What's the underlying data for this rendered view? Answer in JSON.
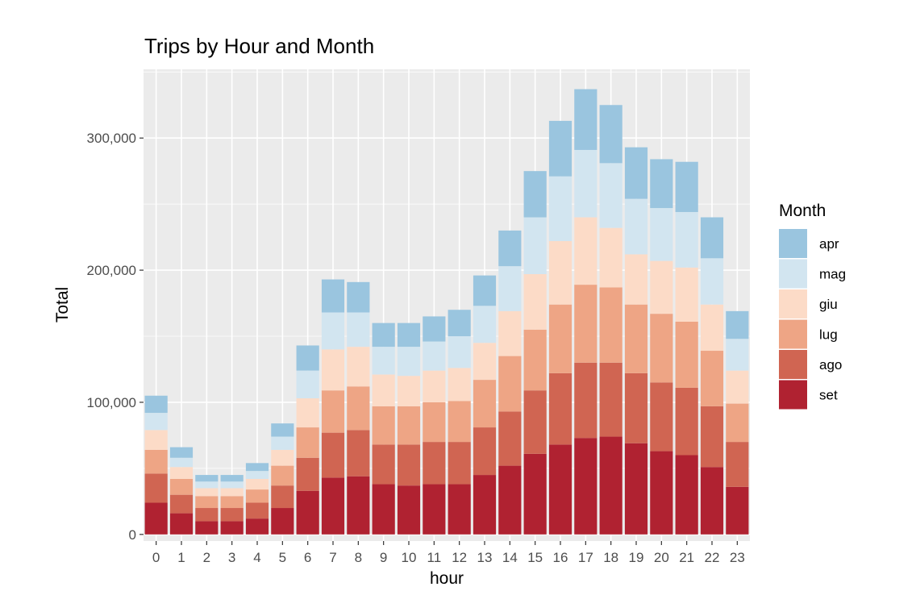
{
  "chart_data": {
    "type": "bar",
    "stacked": true,
    "title": "Trips by Hour and Month",
    "xlabel": "hour",
    "ylabel": "Total",
    "categories": [
      "0",
      "1",
      "2",
      "3",
      "4",
      "5",
      "6",
      "7",
      "8",
      "9",
      "10",
      "11",
      "12",
      "13",
      "14",
      "15",
      "16",
      "17",
      "18",
      "19",
      "20",
      "21",
      "22",
      "23"
    ],
    "y_ticks": [
      0,
      100000,
      200000,
      300000
    ],
    "y_tick_labels": [
      "0",
      "100,000",
      "200,000",
      "300,000"
    ],
    "ylim": [
      -5000,
      352000
    ],
    "grid": true,
    "legend": {
      "title": "Month",
      "position": "right"
    },
    "series": [
      {
        "name": "apr",
        "color": "#9ac5df",
        "values": [
          13000,
          8000,
          5000,
          5000,
          6000,
          10000,
          19000,
          25000,
          23000,
          18000,
          18000,
          19000,
          20000,
          23000,
          27000,
          35000,
          42000,
          46000,
          44000,
          39000,
          37000,
          38000,
          31000,
          21000
        ]
      },
      {
        "name": "mag",
        "color": "#d2e5f0",
        "values": [
          13000,
          7000,
          5000,
          5000,
          6000,
          10000,
          21000,
          28000,
          26000,
          21000,
          22000,
          22000,
          24000,
          28000,
          34000,
          43000,
          49000,
          51000,
          49000,
          42000,
          40000,
          42000,
          35000,
          24000
        ]
      },
      {
        "name": "giu",
        "color": "#fcdbc7",
        "values": [
          15000,
          9000,
          6000,
          6000,
          8000,
          12000,
          22000,
          31000,
          30000,
          24000,
          23000,
          24000,
          25000,
          28000,
          34000,
          42000,
          48000,
          51000,
          45000,
          38000,
          40000,
          41000,
          35000,
          25000
        ]
      },
      {
        "name": "lug",
        "color": "#eea585",
        "values": [
          18000,
          12000,
          9000,
          9000,
          10000,
          15000,
          23000,
          32000,
          33000,
          29000,
          29000,
          30000,
          31000,
          36000,
          42000,
          46000,
          52000,
          59000,
          57000,
          52000,
          52000,
          50000,
          42000,
          29000
        ]
      },
      {
        "name": "ago",
        "color": "#d06552",
        "values": [
          22000,
          14000,
          10000,
          10000,
          12000,
          17000,
          25000,
          34000,
          35000,
          30000,
          31000,
          32000,
          32000,
          36000,
          41000,
          48000,
          54000,
          57000,
          56000,
          53000,
          52000,
          51000,
          46000,
          34000
        ]
      },
      {
        "name": "set",
        "color": "#b02231",
        "values": [
          24000,
          16000,
          10000,
          10000,
          12000,
          20000,
          33000,
          43000,
          44000,
          38000,
          37000,
          38000,
          38000,
          45000,
          52000,
          61000,
          68000,
          73000,
          74000,
          69000,
          63000,
          60000,
          51000,
          36000
        ]
      }
    ]
  }
}
